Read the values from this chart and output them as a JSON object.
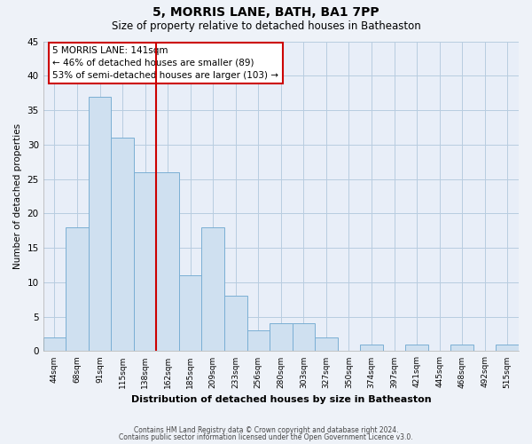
{
  "title": "5, MORRIS LANE, BATH, BA1 7PP",
  "subtitle": "Size of property relative to detached houses in Batheaston",
  "xlabel": "Distribution of detached houses by size in Batheaston",
  "ylabel": "Number of detached properties",
  "bar_labels": [
    "44sqm",
    "68sqm",
    "91sqm",
    "115sqm",
    "138sqm",
    "162sqm",
    "185sqm",
    "209sqm",
    "233sqm",
    "256sqm",
    "280sqm",
    "303sqm",
    "327sqm",
    "350sqm",
    "374sqm",
    "397sqm",
    "421sqm",
    "445sqm",
    "468sqm",
    "492sqm",
    "515sqm"
  ],
  "bar_values": [
    2,
    18,
    37,
    31,
    26,
    26,
    11,
    18,
    8,
    3,
    4,
    4,
    2,
    0,
    1,
    0,
    1,
    0,
    1,
    0,
    1
  ],
  "bar_color": "#cfe0f0",
  "bar_edge_color": "#7aafd4",
  "vline_x": 4.5,
  "vline_color": "#cc0000",
  "ylim": [
    0,
    45
  ],
  "yticks": [
    0,
    5,
    10,
    15,
    20,
    25,
    30,
    35,
    40,
    45
  ],
  "annotation_box_text": "5 MORRIS LANE: 141sqm\n← 46% of detached houses are smaller (89)\n53% of semi-detached houses are larger (103) →",
  "footer_line1": "Contains HM Land Registry data © Crown copyright and database right 2024.",
  "footer_line2": "Contains public sector information licensed under the Open Government Licence v3.0.",
  "background_color": "#eef2f8",
  "plot_background_color": "#e8eef8",
  "grid_color": "#b8cce0"
}
